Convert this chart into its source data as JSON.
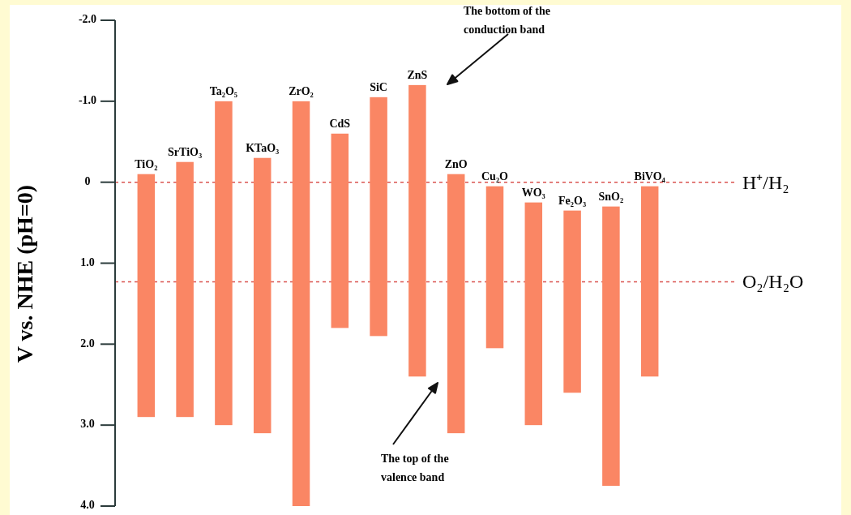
{
  "chart_data": {
    "type": "bar",
    "ylabel": "V vs. NHE (pH=0)",
    "categories": [
      "TiO₂",
      "SrTiO₃",
      "Ta₂O₅",
      "KTaO₃",
      "ZrO₂",
      "CdS",
      "SiC",
      "ZnS",
      "ZnO",
      "Cu₂O",
      "WO₃",
      "Fe₂O₃",
      "SnO₂",
      "BiVO₄"
    ],
    "base": [
      -0.1,
      -0.25,
      -1.0,
      -0.3,
      -1.0,
      -0.6,
      -1.05,
      -1.2,
      -0.1,
      0.05,
      0.25,
      0.35,
      0.3,
      0.05
    ],
    "values": [
      3.0,
      3.15,
      4.0,
      3.4,
      5.0,
      2.4,
      2.95,
      3.6,
      3.2,
      2.0,
      2.75,
      2.25,
      3.45,
      2.35
    ],
    "color": "#fa8664",
    "ylim": [
      4.0,
      -2.0
    ],
    "yticks": [
      {
        "value": -2,
        "label": "-2.0"
      },
      {
        "value": -1,
        "label": "-1.0"
      },
      0,
      {
        "value": 1,
        "label": "1.0"
      },
      {
        "value": 2,
        "label": "2.0"
      },
      {
        "value": 3,
        "label": "3.0"
      },
      {
        "value": 4,
        "label": "4.0"
      }
    ],
    "grid": false,
    "ref_lines": [
      {
        "axis": "y",
        "value": 0,
        "label": "H⁺/H₂",
        "color": "#d9534f",
        "line_style": "dashed"
      },
      {
        "axis": "y",
        "value": 1.23,
        "label": "O₂/H₂O",
        "color": "#d9534f",
        "line_style": "dashed"
      }
    ],
    "annotations": [
      "The bottom of the conduction band",
      "The top of the valence band"
    ]
  }
}
